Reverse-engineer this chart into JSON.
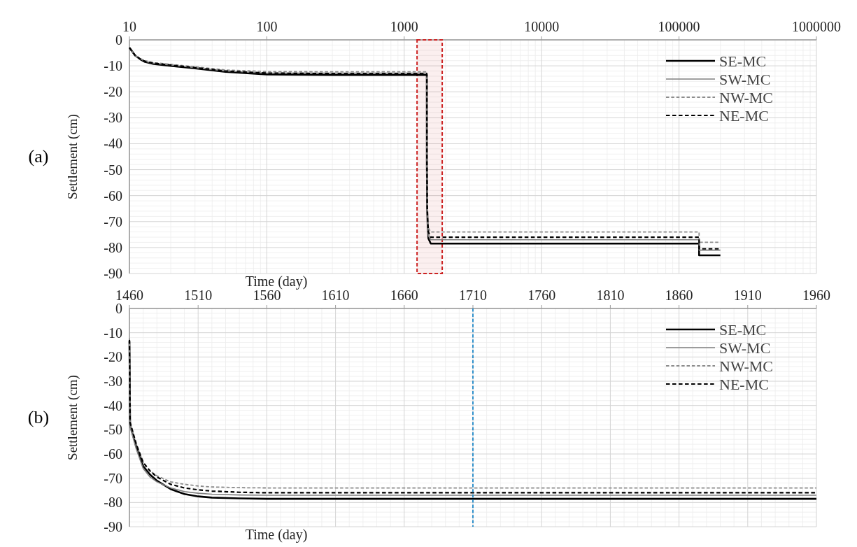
{
  "chart_data": [
    {
      "type": "line",
      "xlabel": "Time (day)",
      "ylabel": "Settlement (cm)",
      "annotations": [
        "(a)"
      ],
      "log": "x",
      "xlim": [
        10,
        1000000
      ],
      "xticks": [
        10,
        100,
        1000,
        10000,
        100000,
        1000000
      ],
      "ylim": [
        -90,
        0
      ],
      "yticks": [
        -90,
        -80,
        -70,
        -60,
        -50,
        -40,
        -30,
        -20,
        -10,
        0
      ],
      "grid": true,
      "legend": "top right",
      "bands": [
        {
          "axis": "x",
          "from": 1240,
          "to": 1890,
          "color": "#cc2222"
        }
      ],
      "series": [
        {
          "name": "SE-MC",
          "color": "#000000",
          "line_style": "solid",
          "x": [
            10,
            11,
            12,
            13,
            15,
            20,
            30,
            50,
            100,
            300,
            1460,
            1461,
            1470,
            1480,
            1500,
            1560,
            140000,
            140001,
            200000
          ],
          "values": [
            -3,
            -6,
            -7.5,
            -8.5,
            -9.3,
            -10,
            -11,
            -12.3,
            -13.3,
            -13.5,
            -13.5,
            -48,
            -65,
            -71,
            -76.5,
            -78.5,
            -78.5,
            -83,
            -83
          ]
        },
        {
          "name": "SW-MC",
          "color": "#7f7f7f",
          "line_style": "solid",
          "x": [
            10,
            11,
            12,
            13,
            15,
            20,
            30,
            50,
            100,
            300,
            1460,
            1461,
            1470,
            1480,
            1500,
            1560,
            140000,
            140001,
            200000
          ],
          "values": [
            -3,
            -6,
            -7.3,
            -8.3,
            -9,
            -9.7,
            -10.7,
            -12,
            -12.8,
            -12.8,
            -12.8,
            -49,
            -66,
            -71.5,
            -75.5,
            -77,
            -77,
            -81,
            -81
          ]
        },
        {
          "name": "NW-MC",
          "color": "#8c8c8c",
          "line_style": "dashed",
          "x": [
            10,
            11,
            12,
            13,
            15,
            20,
            30,
            50,
            100,
            300,
            1460,
            1461,
            1470,
            1480,
            1500,
            1560,
            140000,
            140001,
            200000
          ],
          "values": [
            -3,
            -6,
            -7.2,
            -8,
            -8.8,
            -9.4,
            -10.4,
            -11.6,
            -12.2,
            -12.3,
            -12.3,
            -47,
            -63.5,
            -69,
            -72.5,
            -74,
            -74,
            -78,
            -78
          ]
        },
        {
          "name": "NE-MC",
          "color": "#000000",
          "line_style": "dashed",
          "x": [
            10,
            11,
            12,
            13,
            15,
            20,
            30,
            50,
            100,
            300,
            1460,
            1461,
            1470,
            1480,
            1500,
            1560,
            140000,
            140001,
            200000
          ],
          "values": [
            -3,
            -6,
            -7.4,
            -8.3,
            -9,
            -9.7,
            -10.7,
            -12,
            -12.8,
            -13,
            -13,
            -47,
            -63.5,
            -69.5,
            -74,
            -76,
            -76,
            -80.5,
            -80.5
          ]
        }
      ]
    },
    {
      "type": "line",
      "xlabel": "Time (day)",
      "ylabel": "Settlement (cm)",
      "annotations": [
        "(b)"
      ],
      "xlim": [
        1460,
        1960
      ],
      "xticks": [
        1460,
        1510,
        1560,
        1610,
        1660,
        1710,
        1760,
        1810,
        1860,
        1910,
        1960
      ],
      "ylim": [
        -90,
        0
      ],
      "yticks": [
        -90,
        -80,
        -70,
        -60,
        -50,
        -40,
        -30,
        -20,
        -10,
        0
      ],
      "grid": true,
      "legend": "top right",
      "ref_lines": [
        {
          "axis": "x",
          "value": 1710,
          "color": "#1e88c8",
          "line_style": "dashed"
        }
      ],
      "series": [
        {
          "name": "SE-MC",
          "color": "#000000",
          "line_style": "solid",
          "x": [
            1460,
            1460.5,
            1465,
            1470,
            1475,
            1480,
            1490,
            1500,
            1510,
            1520,
            1540,
            1560,
            1600,
            1960
          ],
          "values": [
            -13.5,
            -48,
            -57,
            -65,
            -68.5,
            -71,
            -74.5,
            -76.5,
            -77.5,
            -78,
            -78.3,
            -78.5,
            -78.5,
            -78.5
          ]
        },
        {
          "name": "SW-MC",
          "color": "#7f7f7f",
          "line_style": "solid",
          "x": [
            1460,
            1460.5,
            1465,
            1470,
            1475,
            1480,
            1490,
            1500,
            1510,
            1520,
            1540,
            1560,
            1600,
            1960
          ],
          "values": [
            -12.8,
            -49,
            -58,
            -66,
            -69.5,
            -71.5,
            -74,
            -75.5,
            -76.2,
            -76.6,
            -76.9,
            -77,
            -77,
            -77
          ]
        },
        {
          "name": "NW-MC",
          "color": "#8c8c8c",
          "line_style": "dashed",
          "x": [
            1460,
            1460.5,
            1465,
            1470,
            1475,
            1480,
            1490,
            1500,
            1510,
            1520,
            1540,
            1560,
            1600,
            1960
          ],
          "values": [
            -12.3,
            -47,
            -56,
            -63.5,
            -67,
            -69,
            -71.5,
            -72.5,
            -73.2,
            -73.6,
            -73.9,
            -74,
            -74,
            -74
          ]
        },
        {
          "name": "NE-MC",
          "color": "#000000",
          "line_style": "dashed",
          "x": [
            1460,
            1460.5,
            1465,
            1470,
            1475,
            1480,
            1490,
            1500,
            1510,
            1520,
            1540,
            1560,
            1600,
            1960
          ],
          "values": [
            -13,
            -47,
            -56,
            -63.5,
            -67,
            -69.5,
            -72.5,
            -74,
            -74.8,
            -75.3,
            -75.8,
            -76,
            -76,
            -76
          ]
        }
      ]
    }
  ]
}
